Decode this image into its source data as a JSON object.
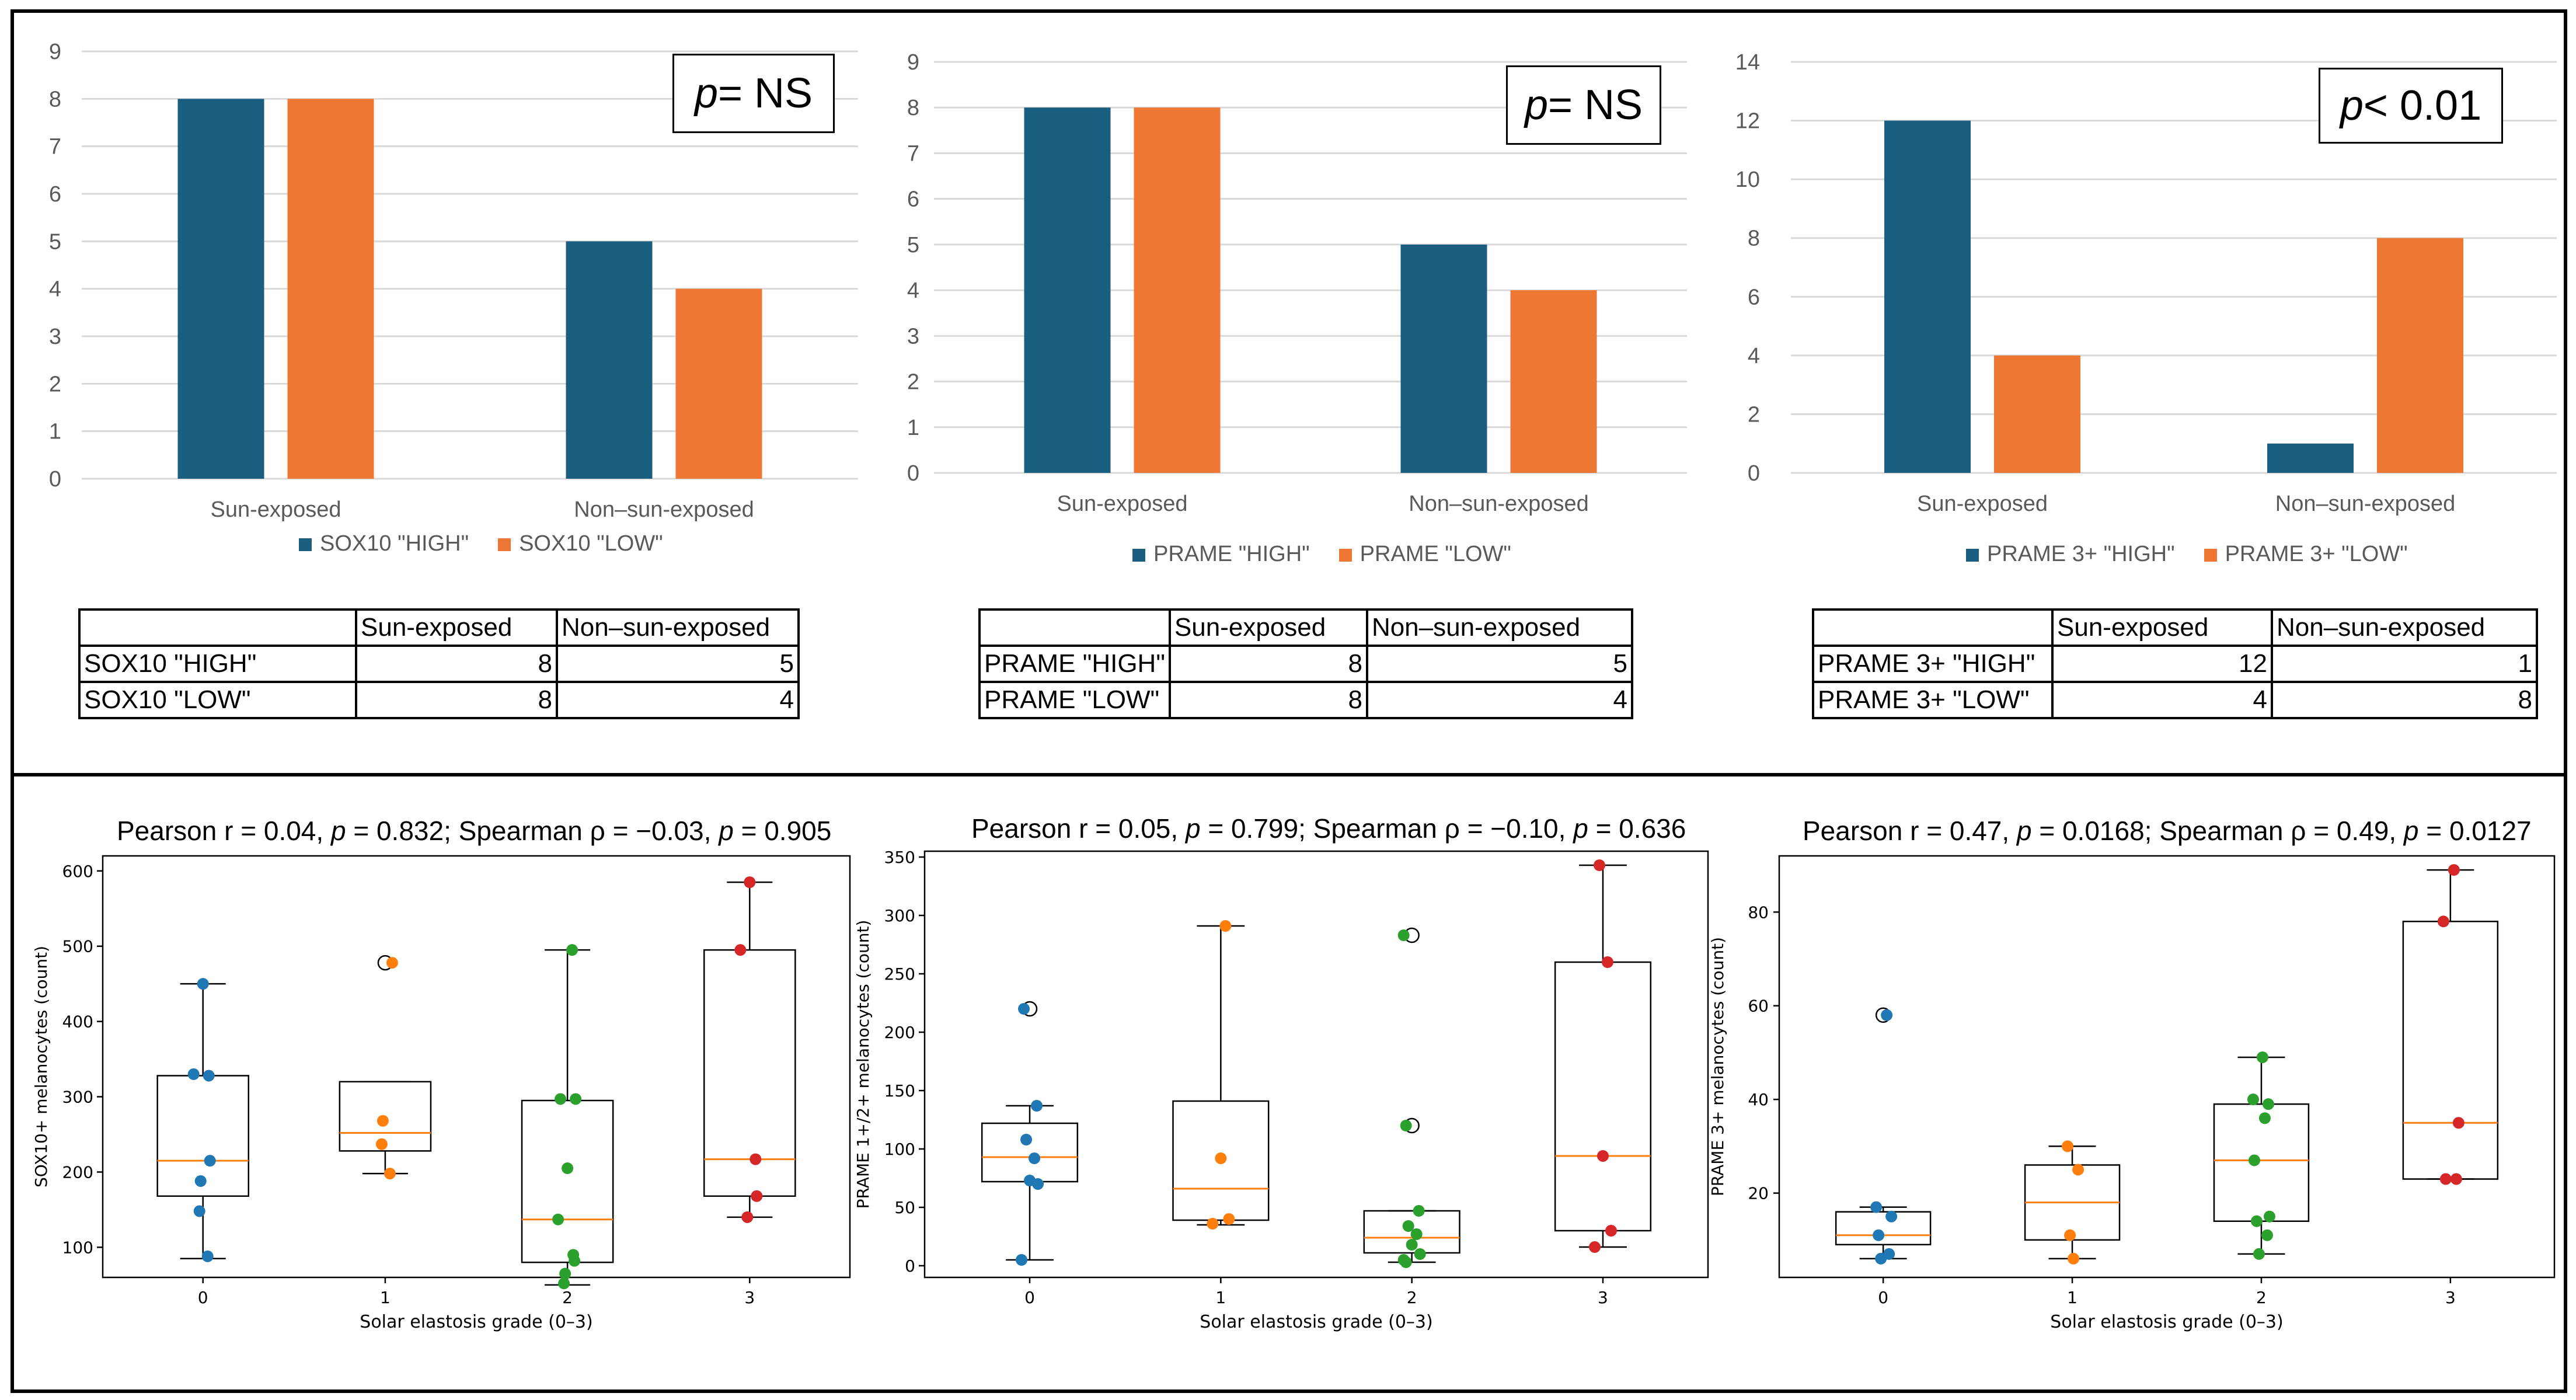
{
  "colors": {
    "high": "#1a5e80",
    "low": "#ee7733",
    "grid": "#d9d9d9",
    "axis_text": "#595959",
    "g0": "#1f77b4",
    "g1": "#ff7f0e",
    "g2": "#2ca02c",
    "g3": "#d62728",
    "median": "#ff7f0e"
  },
  "bar_panels": [
    {
      "pbox": {
        "prefix": "p",
        "text": "= NS"
      },
      "table": {
        "header": [
          "",
          "Sun-exposed",
          "Non–sun-exposed"
        ],
        "rows": [
          [
            "SOX10 \"HIGH\"",
            "8",
            "5"
          ],
          [
            "SOX10 \"LOW\"",
            "8",
            "4"
          ]
        ]
      }
    },
    {
      "pbox": {
        "prefix": "p",
        "text": "= NS"
      },
      "table": {
        "header": [
          "",
          "Sun-exposed",
          "Non–sun-exposed"
        ],
        "rows": [
          [
            "PRAME \"HIGH\"",
            "8",
            "5"
          ],
          [
            "PRAME \"LOW\"",
            "8",
            "4"
          ]
        ]
      }
    },
    {
      "pbox": {
        "prefix": "p",
        "text": "< 0.01"
      },
      "table": {
        "header": [
          "",
          "Sun-exposed",
          "Non–sun-exposed"
        ],
        "rows": [
          [
            "PRAME 3+ \"HIGH\"",
            "12",
            "1"
          ],
          [
            "PRAME 3+ \"LOW\"",
            "4",
            "8"
          ]
        ]
      }
    }
  ],
  "box_titles": [
    {
      "a": "Pearson r = 0.04, ",
      "p1": "p",
      "b": " = 0.832; Spearman ρ = −0.03, ",
      "p2": "p",
      "c": " = 0.905"
    },
    {
      "a": "Pearson r = 0.05, ",
      "p1": "p",
      "b": " = 0.799; Spearman ρ = −0.10, ",
      "p2": "p",
      "c": " = 0.636"
    },
    {
      "a": "Pearson r = 0.47, ",
      "p1": "p",
      "b": " = 0.0168; Spearman ρ = 0.49, ",
      "p2": "p",
      "c": " = 0.0127"
    }
  ],
  "chart_data": [
    {
      "type": "bar",
      "categories": [
        "Sun-exposed",
        "Non–sun-exposed"
      ],
      "series": [
        {
          "name": "SOX10 \"HIGH\"",
          "values": [
            8,
            5
          ]
        },
        {
          "name": "SOX10 \"LOW\"",
          "values": [
            8,
            4
          ]
        }
      ],
      "ylim": [
        0,
        9
      ],
      "yticks": [
        0,
        1,
        2,
        3,
        4,
        5,
        6,
        7,
        8,
        9
      ],
      "grid": true,
      "legend": "bottom"
    },
    {
      "type": "bar",
      "categories": [
        "Sun-exposed",
        "Non–sun-exposed"
      ],
      "series": [
        {
          "name": "PRAME \"HIGH\"",
          "values": [
            8,
            5
          ]
        },
        {
          "name": "PRAME \"LOW\"",
          "values": [
            8,
            4
          ]
        }
      ],
      "ylim": [
        0,
        9
      ],
      "yticks": [
        0,
        1,
        2,
        3,
        4,
        5,
        6,
        7,
        8,
        9
      ],
      "grid": true,
      "legend": "bottom"
    },
    {
      "type": "bar",
      "categories": [
        "Sun-exposed",
        "Non–sun-exposed"
      ],
      "series": [
        {
          "name": "PRAME 3+ \"HIGH\"",
          "values": [
            12,
            1
          ]
        },
        {
          "name": "PRAME 3+ \"LOW\"",
          "values": [
            4,
            8
          ]
        }
      ],
      "ylim": [
        0,
        14
      ],
      "yticks": [
        0,
        2,
        4,
        6,
        8,
        10,
        12,
        14
      ],
      "grid": true,
      "legend": "bottom"
    },
    {
      "type": "box",
      "xlabel": "Solar elastosis grade (0–3)",
      "ylabel": "SOX10+ melanocytes (count)",
      "categories": [
        "0",
        "1",
        "2",
        "3"
      ],
      "ylim": [
        60,
        620
      ],
      "yticks": [
        100,
        200,
        300,
        400,
        500,
        600
      ],
      "boxes": [
        {
          "whislo": 85,
          "q1": 168,
          "med": 215,
          "q3": 328,
          "whishi": 450,
          "fliers": []
        },
        {
          "whislo": 198,
          "q1": 228,
          "med": 252,
          "q3": 320,
          "whishi": 320,
          "fliers": [
            478
          ]
        },
        {
          "whislo": 50,
          "q1": 80,
          "med": 137,
          "q3": 295,
          "whishi": 495,
          "fliers": []
        },
        {
          "whislo": 140,
          "q1": 168,
          "med": 217,
          "q3": 495,
          "whishi": 585,
          "fliers": []
        }
      ],
      "points": [
        [
          450,
          330,
          328,
          215,
          188,
          148,
          88
        ],
        [
          478,
          268,
          237,
          198
        ],
        [
          495,
          297,
          297,
          205,
          137,
          90,
          82,
          65,
          52
        ],
        [
          585,
          495,
          217,
          168,
          140
        ]
      ]
    },
    {
      "type": "box",
      "xlabel": "Solar elastosis grade (0–3)",
      "ylabel": "PRAME 1+/2+ melanocytes (count)",
      "categories": [
        "0",
        "1",
        "2",
        "3"
      ],
      "ylim": [
        -10,
        355
      ],
      "yticks": [
        0,
        50,
        100,
        150,
        200,
        250,
        300,
        350
      ],
      "boxes": [
        {
          "whislo": 5,
          "q1": 72,
          "med": 93,
          "q3": 122,
          "whishi": 137,
          "fliers": [
            220
          ]
        },
        {
          "whislo": 35,
          "q1": 39,
          "med": 66,
          "q3": 141,
          "whishi": 291,
          "fliers": []
        },
        {
          "whislo": 3,
          "q1": 11,
          "med": 24,
          "q3": 47,
          "whishi": 47,
          "fliers": [
            120,
            283
          ]
        },
        {
          "whislo": 16,
          "q1": 30,
          "med": 94,
          "q3": 260,
          "whishi": 343,
          "fliers": []
        }
      ],
      "points": [
        [
          220,
          137,
          108,
          92,
          73,
          70,
          5
        ],
        [
          291,
          92,
          40,
          36
        ],
        [
          283,
          120,
          47,
          34,
          27,
          18,
          10,
          5,
          3
        ],
        [
          343,
          260,
          94,
          30,
          16
        ]
      ]
    },
    {
      "type": "box",
      "xlabel": "Solar elastosis grade (0–3)",
      "ylabel": "PRAME 3+ melanocytes (count)",
      "categories": [
        "0",
        "1",
        "2",
        "3"
      ],
      "ylim": [
        2,
        92
      ],
      "yticks": [
        20,
        40,
        60,
        80
      ],
      "boxes": [
        {
          "whislo": 6,
          "q1": 9,
          "med": 11,
          "q3": 16,
          "whishi": 17,
          "fliers": [
            58
          ]
        },
        {
          "whislo": 6,
          "q1": 10,
          "med": 18,
          "q3": 26,
          "whishi": 30,
          "fliers": []
        },
        {
          "whislo": 7,
          "q1": 14,
          "med": 27,
          "q3": 39,
          "whishi": 49,
          "fliers": []
        },
        {
          "whislo": 23,
          "q1": 23,
          "med": 35,
          "q3": 78,
          "whishi": 89,
          "fliers": []
        }
      ],
      "points": [
        [
          58,
          17,
          15,
          11,
          7,
          6
        ],
        [
          30,
          25,
          11,
          6
        ],
        [
          49,
          40,
          39,
          36,
          27,
          15,
          14,
          11,
          7
        ],
        [
          89,
          78,
          35,
          23,
          23
        ]
      ]
    }
  ]
}
